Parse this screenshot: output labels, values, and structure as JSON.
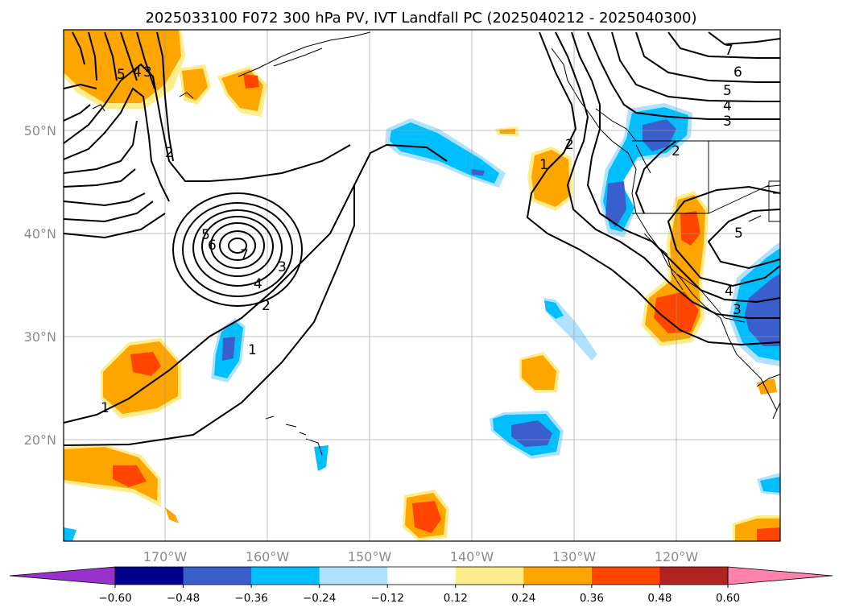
{
  "title": "2025033100 F072 300 hPa PV, IVT Landfall PC (2025040212 - 2025040300)",
  "map": {
    "lon_labels": [
      "170°W",
      "160°W",
      "150°W",
      "140°W",
      "130°W",
      "120°W"
    ],
    "lat_labels": [
      "50°N",
      "40°N",
      "30°N",
      "20°N"
    ]
  },
  "colorbar": {
    "ticks": [
      "−0.60",
      "−0.48",
      "−0.36",
      "−0.24",
      "−0.12",
      "0.12",
      "0.24",
      "0.36",
      "0.48",
      "0.60"
    ],
    "colors": [
      "#9932cc",
      "#00008b",
      "#3a5fcd",
      "#00bfff",
      "#b0e2ff",
      "#ffffff",
      "#ffec8b",
      "#ffa500",
      "#ff4500",
      "#b22222",
      "#ff82ab"
    ]
  },
  "contour_labels": [
    "1",
    "2",
    "3",
    "4",
    "5",
    "6",
    "7"
  ],
  "colors": {
    "neg_light": "#b0e2ff",
    "neg_mid": "#00bfff",
    "neg_dark": "#3a5fcd",
    "pos_light": "#ffec8b",
    "pos_mid": "#ffa500",
    "pos_dark": "#ff4500"
  }
}
